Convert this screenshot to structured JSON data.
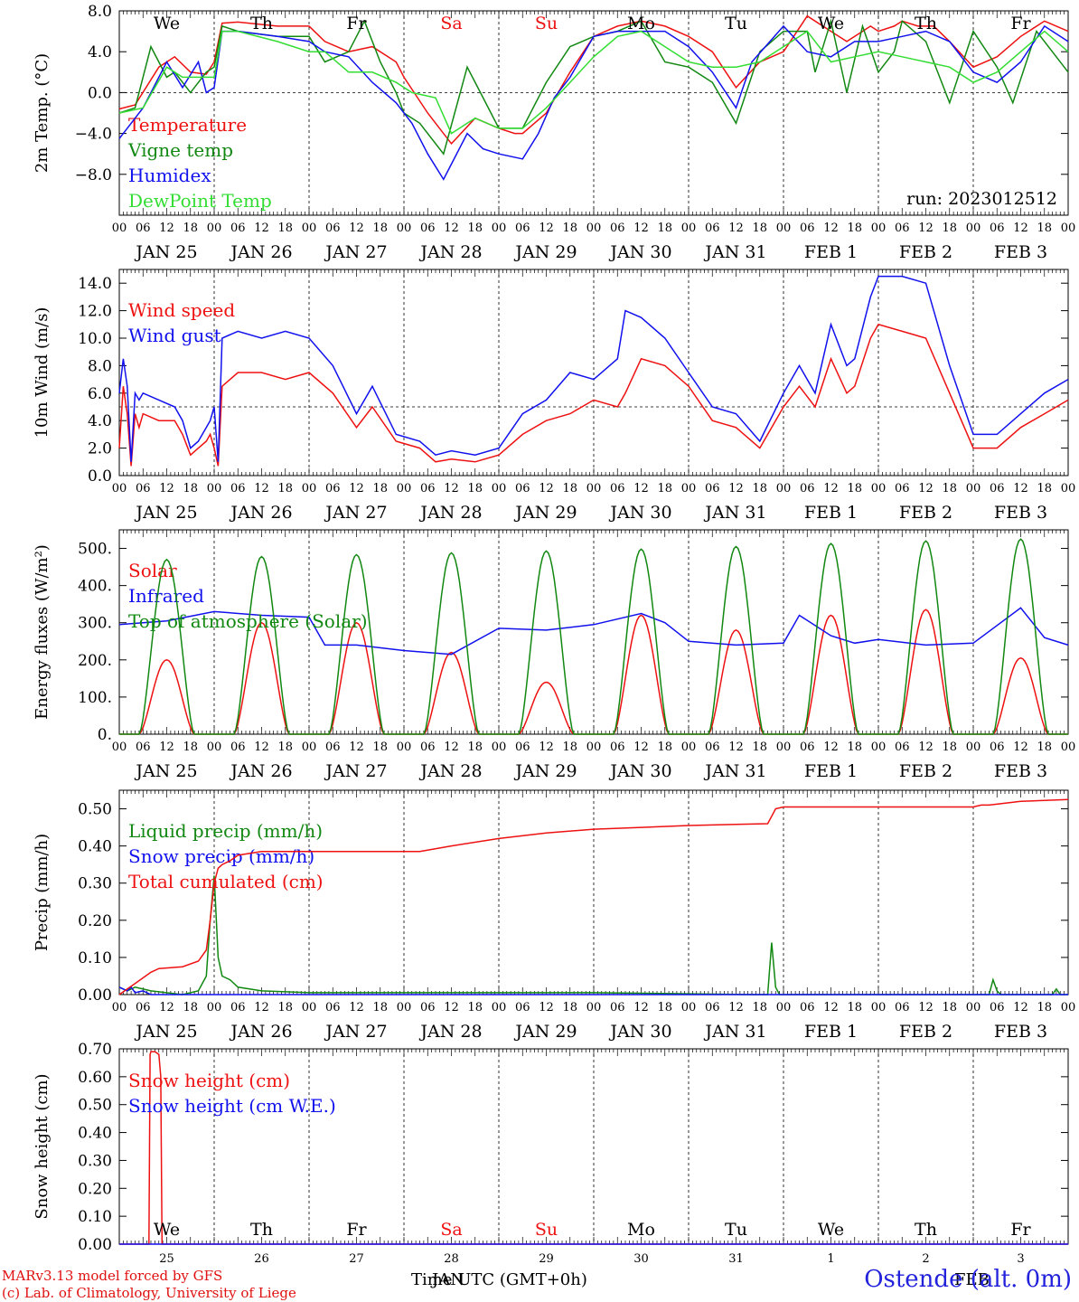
{
  "run_label": "run: 2023012512",
  "footer": {
    "model": "MARv3.13 model forced by GFS",
    "lab": "(c) Lab. of Climatology, University of Liege",
    "time_axis": "Time UTC (GMT+0h)",
    "month_jan": "JAN",
    "month_feb": "FEB",
    "station": "Ostende (alt. 0m)"
  },
  "colors": {
    "red": "#ee1111",
    "darkgreen": "#118811",
    "blue": "#1111ee",
    "lightgreen": "#33dd33",
    "grid": "#000000"
  },
  "day_labels": [
    "JAN 25",
    "JAN 26",
    "JAN 27",
    "JAN 28",
    "JAN 29",
    "JAN 30",
    "JAN 31",
    "FEB  1",
    "FEB  2",
    "FEB  3"
  ],
  "hour_labels": [
    "00",
    "06",
    "12",
    "18"
  ],
  "weekdays": [
    {
      "label": "We",
      "color": "#000000"
    },
    {
      "label": "Th",
      "color": "#000000"
    },
    {
      "label": "Fr",
      "color": "#000000"
    },
    {
      "label": "Sa",
      "color": "#ee1111"
    },
    {
      "label": "Su",
      "color": "#ee1111"
    },
    {
      "label": "Mo",
      "color": "#000000"
    },
    {
      "label": "Tu",
      "color": "#000000"
    },
    {
      "label": "We",
      "color": "#000000"
    },
    {
      "label": "Th",
      "color": "#000000"
    },
    {
      "label": "Fr",
      "color": "#000000"
    }
  ],
  "bottom_days": [
    "25",
    "26",
    "27",
    "28",
    "29",
    "30",
    "31",
    "1",
    "2",
    "3"
  ],
  "chart_data": [
    {
      "type": "line",
      "ylabel": "2m Temp. (°C)",
      "ylim": [
        -12,
        8
      ],
      "yticks": [
        8,
        4,
        0,
        -4,
        -8
      ],
      "ytick_labels": [
        "8.0",
        "4.0",
        "0.0",
        "−4.0",
        "−8.0"
      ],
      "ref_line": 0,
      "x_unit": "hours since JAN 25 00 UTC",
      "series": [
        {
          "name": "Temperature",
          "color": "#ee1111",
          "x": [
            0,
            4,
            10,
            14,
            18,
            22,
            24,
            26,
            30,
            40,
            48,
            52,
            58,
            64,
            70,
            72,
            78,
            84,
            90,
            96,
            100,
            102,
            108,
            114,
            120,
            126,
            132,
            138,
            144,
            150,
            156,
            162,
            168,
            174,
            180,
            184,
            188,
            190,
            192,
            196,
            198,
            202,
            206,
            210,
            216,
            222,
            228,
            234,
            240
          ],
          "y": [
            -1.6,
            -1.2,
            2.5,
            3.5,
            2,
            1.8,
            3,
            6.8,
            6.9,
            6.5,
            6.5,
            5,
            4,
            4.5,
            3,
            1.5,
            -2,
            -5,
            -2.5,
            -3.5,
            -4,
            -4,
            -2,
            2,
            5.5,
            6.5,
            7,
            6.5,
            5.5,
            4,
            0.5,
            3,
            4,
            7.5,
            6,
            5,
            6,
            6.5,
            6,
            6.5,
            7,
            6.5,
            6.5,
            5,
            2.5,
            3.5,
            5.5,
            7,
            6
          ]
        },
        {
          "name": "Vigne temp",
          "color": "#118811",
          "x": [
            0,
            4,
            8,
            12,
            14,
            18,
            22,
            24,
            26,
            30,
            40,
            48,
            52,
            58,
            62,
            66,
            70,
            72,
            76,
            82,
            88,
            90,
            96,
            102,
            108,
            114,
            120,
            126,
            132,
            138,
            144,
            150,
            156,
            162,
            168,
            174,
            176,
            180,
            184,
            188,
            192,
            196,
            198,
            204,
            210,
            216,
            222,
            226,
            232,
            240
          ],
          "y": [
            -2,
            -1.5,
            4.5,
            1.5,
            2,
            0,
            2,
            2.5,
            6.5,
            6,
            5.5,
            5.5,
            3,
            4,
            7,
            3,
            0,
            -2,
            -3,
            -6,
            2.5,
            1,
            -3.5,
            -3.5,
            1,
            4.5,
            5.5,
            6,
            7,
            3,
            2.5,
            1,
            -3,
            4,
            6,
            6,
            2,
            7,
            0,
            6.5,
            2,
            4,
            7,
            5,
            -1,
            6,
            2.5,
            -1,
            6,
            2
          ]
        },
        {
          "name": "Humidex",
          "color": "#1111ee",
          "x": [
            0,
            6,
            12,
            16,
            20,
            22,
            24,
            26,
            30,
            40,
            48,
            52,
            58,
            64,
            70,
            74,
            78,
            82,
            84,
            88,
            92,
            96,
            102,
            106,
            110,
            114,
            120,
            126,
            132,
            138,
            144,
            150,
            156,
            160,
            168,
            174,
            180,
            186,
            192,
            198,
            204,
            210,
            216,
            222,
            228,
            234,
            240
          ],
          "y": [
            -4.5,
            -1.5,
            3,
            0.5,
            3,
            0,
            0.5,
            6,
            6,
            5.5,
            5,
            4,
            3.5,
            1,
            -1,
            -3,
            -6,
            -8.5,
            -7,
            -4,
            -5.5,
            -6,
            -6.5,
            -4,
            -0.5,
            1.5,
            5.5,
            6,
            6,
            6,
            4.5,
            2,
            -1.5,
            3,
            6.5,
            4,
            3.5,
            5,
            5,
            5.5,
            6,
            5,
            2,
            1,
            3,
            6.5,
            5
          ]
        },
        {
          "name": "DewPoint Temp",
          "color": "#33dd33",
          "x": [
            0,
            6,
            12,
            16,
            20,
            24,
            26,
            30,
            40,
            48,
            52,
            58,
            64,
            70,
            74,
            80,
            84,
            88,
            90,
            96,
            102,
            108,
            114,
            120,
            126,
            132,
            138,
            144,
            150,
            156,
            162,
            168,
            174,
            180,
            186,
            192,
            198,
            204,
            210,
            216,
            222,
            228,
            234,
            240
          ],
          "y": [
            -2,
            -1.5,
            2.5,
            1.5,
            1.5,
            1.5,
            6,
            6,
            5,
            4,
            4,
            2,
            2,
            1,
            0,
            -0.5,
            -4,
            -3,
            -2.5,
            -3.5,
            -3.5,
            -1.5,
            1,
            3.5,
            5.5,
            6,
            4.5,
            3,
            2.5,
            2.5,
            3,
            4.5,
            6,
            3,
            3.5,
            4,
            3.5,
            3,
            2.5,
            1,
            2,
            4,
            6,
            4
          ]
        }
      ]
    },
    {
      "type": "line",
      "ylabel": "10m Wind (m/s)",
      "ylim": [
        0,
        15
      ],
      "yticks": [
        14,
        12,
        10,
        8,
        6,
        4,
        2,
        0
      ],
      "ytick_labels": [
        "14.0",
        "12.0",
        "10.0",
        "8.0",
        "6.0",
        "4.0",
        "2.0",
        "0.0"
      ],
      "ref_line": 5,
      "series": [
        {
          "name": "Wind speed",
          "color": "#ee1111",
          "x": [
            0,
            1,
            2,
            3,
            4,
            5,
            6,
            10,
            14,
            16,
            18,
            20,
            22,
            23,
            24,
            25,
            26,
            30,
            36,
            42,
            48,
            54,
            60,
            64,
            70,
            76,
            80,
            84,
            90,
            96,
            102,
            108,
            114,
            120,
            126,
            128,
            132,
            138,
            144,
            150,
            156,
            162,
            168,
            172,
            176,
            180,
            184,
            186,
            190,
            192,
            198,
            204,
            210,
            216,
            222,
            228,
            234,
            240
          ],
          "y": [
            2,
            6.5,
            4.5,
            0.7,
            4.5,
            3.5,
            4.5,
            4,
            4,
            3,
            1.5,
            2,
            2.5,
            3,
            2,
            0.7,
            6.5,
            7.5,
            7.5,
            7,
            7.5,
            6,
            3.5,
            5,
            2.5,
            2,
            1,
            1.2,
            1,
            1.5,
            3,
            4,
            4.5,
            5.5,
            5,
            6,
            8.5,
            8,
            6.5,
            4,
            3.5,
            2,
            5,
            6.5,
            5,
            8.5,
            6,
            6.5,
            10,
            11,
            10.5,
            10,
            6,
            2,
            2,
            3.5,
            4.5,
            5.5
          ]
        },
        {
          "name": "Wind gust",
          "color": "#1111ee",
          "x": [
            0,
            1,
            2,
            3,
            4,
            5,
            6,
            10,
            14,
            16,
            18,
            20,
            22,
            23,
            24,
            25,
            26,
            30,
            36,
            42,
            48,
            54,
            60,
            64,
            70,
            76,
            80,
            84,
            90,
            96,
            102,
            108,
            114,
            120,
            126,
            128,
            132,
            138,
            144,
            150,
            156,
            162,
            168,
            172,
            176,
            180,
            184,
            186,
            190,
            192,
            198,
            204,
            210,
            216,
            222,
            228,
            234,
            240
          ],
          "y": [
            6,
            8.5,
            6.5,
            1,
            6,
            5.5,
            6,
            5.5,
            5,
            4,
            2,
            2.5,
            3.5,
            4,
            5,
            1,
            10,
            10.5,
            10,
            10.5,
            10,
            8,
            4.5,
            6.5,
            3,
            2.5,
            1.5,
            1.8,
            1.5,
            2,
            4.5,
            5.5,
            7.5,
            7,
            8.5,
            12,
            11.5,
            10,
            7.5,
            5,
            4.5,
            2.5,
            6,
            8,
            6,
            11,
            8,
            8.5,
            13,
            14.5,
            14.5,
            14,
            8,
            3,
            3,
            4.5,
            6,
            7
          ]
        }
      ]
    },
    {
      "type": "line",
      "ylabel": "Energy fluxes (W/m²)",
      "ylim": [
        0,
        550
      ],
      "yticks": [
        500,
        400,
        300,
        200,
        100,
        0
      ],
      "ytick_labels": [
        "500.",
        "400.",
        "300.",
        "200.",
        "100.",
        "0."
      ],
      "series": [
        {
          "name": "Solar",
          "color": "#ee1111",
          "peak_hour": 12,
          "peaks": [
            200,
            300,
            300,
            220,
            140,
            320,
            280,
            320,
            335,
            205
          ]
        },
        {
          "name": "Infrared",
          "color": "#1111ee",
          "x": [
            0,
            12,
            24,
            36,
            48,
            52,
            60,
            72,
            84,
            96,
            108,
            120,
            132,
            138,
            144,
            156,
            168,
            172,
            180,
            186,
            192,
            204,
            216,
            228,
            234,
            240
          ],
          "y": [
            295,
            305,
            330,
            320,
            315,
            240,
            240,
            225,
            215,
            285,
            280,
            295,
            325,
            300,
            250,
            240,
            245,
            320,
            265,
            245,
            255,
            240,
            245,
            340,
            260,
            240
          ]
        },
        {
          "name": "Top of atmosphere (Solar)",
          "color": "#118811",
          "peak_hour": 12,
          "peaks": [
            470,
            478,
            483,
            488,
            493,
            498,
            505,
            513,
            520,
            525
          ]
        }
      ]
    },
    {
      "type": "line",
      "ylabel": "Precip (mm/h)",
      "ylim": [
        0,
        0.55
      ],
      "yticks": [
        0.5,
        0.4,
        0.3,
        0.2,
        0.1,
        0
      ],
      "ytick_labels": [
        "0.50",
        "0.40",
        "0.30",
        "0.20",
        "0.10",
        "0.00"
      ],
      "series": [
        {
          "name": "Liquid precip (mm/h)",
          "color": "#118811",
          "x": [
            0,
            2,
            4,
            8,
            16,
            20,
            22,
            23,
            24,
            25,
            26,
            28,
            30,
            36,
            48,
            60,
            96,
            120,
            160,
            164,
            165,
            166,
            167,
            168,
            220,
            221,
            222,
            223,
            236,
            237,
            238,
            240
          ],
          "y": [
            0.02,
            0.01,
            0.02,
            0.01,
            0,
            0.01,
            0.05,
            0.2,
            0.32,
            0.1,
            0.05,
            0.04,
            0.02,
            0.01,
            0.005,
            0.005,
            0.005,
            0.005,
            0,
            0,
            0.14,
            0.02,
            0,
            0,
            0,
            0.04,
            0.01,
            0,
            0,
            0.015,
            0,
            0
          ]
        },
        {
          "name": "Snow precip (mm/h)",
          "color": "#1111ee",
          "x": [
            0,
            2,
            3,
            4,
            6,
            8,
            240
          ],
          "y": [
            0.02,
            0.01,
            0.02,
            0.005,
            0.01,
            0,
            0
          ]
        },
        {
          "name": "Total cumulated (cm)",
          "color": "#ee1111",
          "x": [
            0,
            4,
            8,
            10,
            16,
            20,
            22,
            23,
            24,
            25,
            26,
            28,
            30,
            36,
            48,
            60,
            72,
            76,
            84,
            96,
            108,
            120,
            132,
            144,
            156,
            164,
            165,
            166,
            168,
            216,
            218,
            220,
            228,
            240
          ],
          "y": [
            0,
            0.03,
            0.06,
            0.07,
            0.075,
            0.09,
            0.12,
            0.2,
            0.3,
            0.34,
            0.35,
            0.36,
            0.375,
            0.385,
            0.385,
            0.385,
            0.385,
            0.385,
            0.4,
            0.42,
            0.435,
            0.445,
            0.45,
            0.455,
            0.458,
            0.46,
            0.48,
            0.5,
            0.505,
            0.505,
            0.51,
            0.51,
            0.52,
            0.525
          ]
        }
      ]
    },
    {
      "type": "line",
      "ylabel": "Snow height (cm)",
      "ylim": [
        0,
        0.7
      ],
      "yticks": [
        0.7,
        0.6,
        0.5,
        0.4,
        0.3,
        0.2,
        0.1,
        0
      ],
      "ytick_labels": [
        "0.70",
        "0.60",
        "0.50",
        "0.40",
        "0.30",
        "0.20",
        "0.10",
        "0.00"
      ],
      "series": [
        {
          "name": "Snow height (cm)",
          "color": "#ee1111",
          "x": [
            0,
            7.5,
            7.8,
            8,
            9,
            10,
            10.5,
            10.8,
            240
          ],
          "y": [
            0,
            0,
            0.68,
            0.69,
            0.69,
            0.68,
            0.6,
            0,
            0
          ]
        },
        {
          "name": "Snow height (cm W.E.)",
          "color": "#1111ee",
          "x": [
            0,
            240
          ],
          "y": [
            0,
            0
          ]
        }
      ]
    }
  ]
}
